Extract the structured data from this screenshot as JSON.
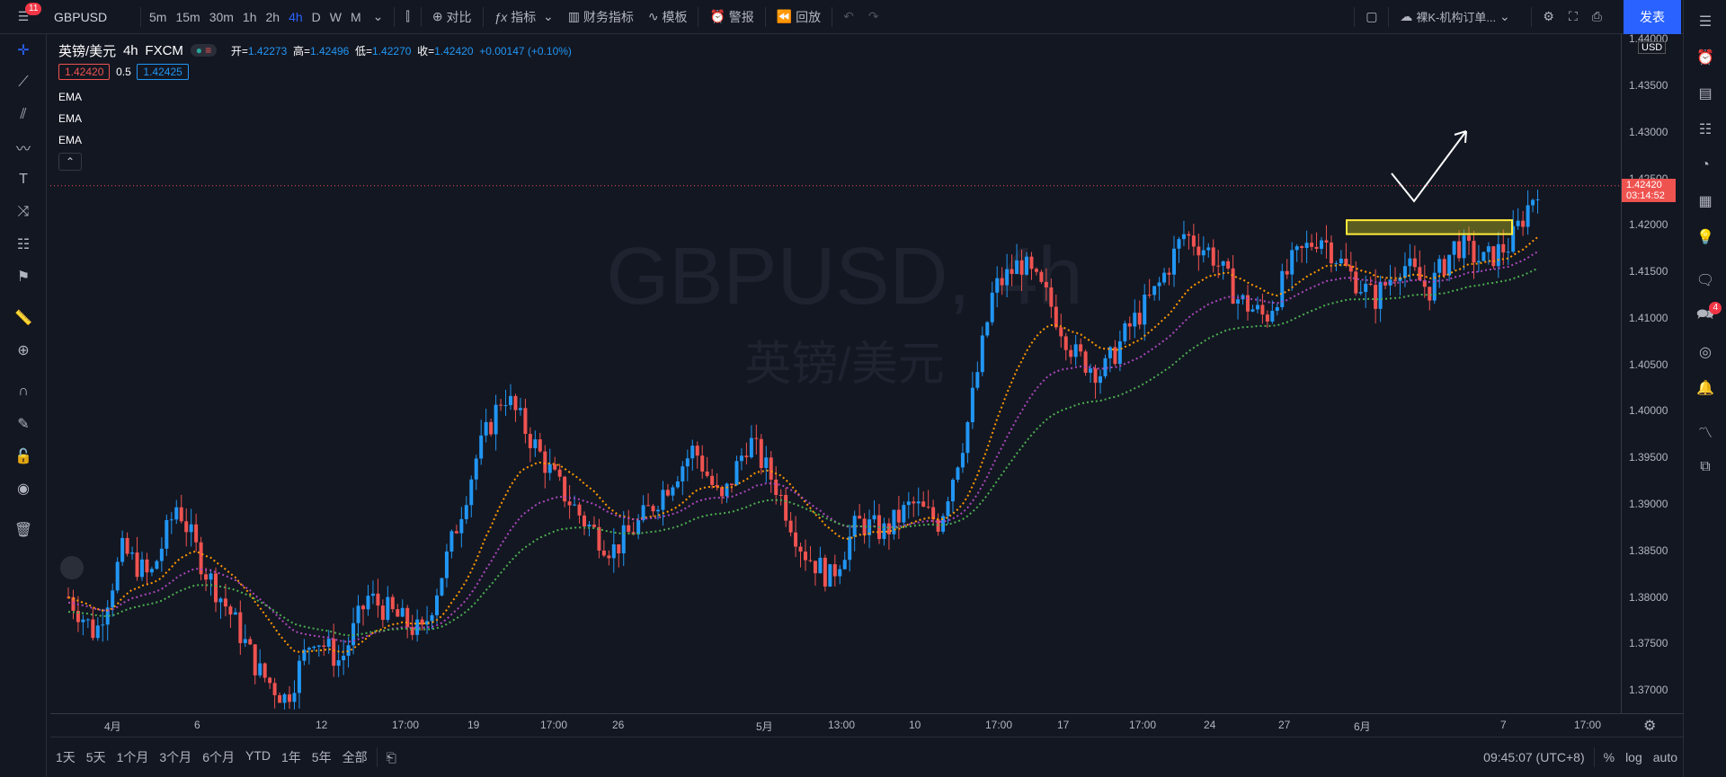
{
  "topbar": {
    "menu_badge": "11",
    "symbol": "GBPUSD",
    "intervals": [
      "5m",
      "15m",
      "30m",
      "1h",
      "2h",
      "4h",
      "D",
      "W",
      "M"
    ],
    "active_interval": "4h",
    "compare": "对比",
    "indicators": "指标",
    "financials": "财务指标",
    "templates": "模板",
    "alert": "警报",
    "replay": "回放",
    "layout_name": "裸K-机构订单...",
    "publish": "发表"
  },
  "legend": {
    "title": "英镑/美元",
    "interval": "4h",
    "exchange": "FXCM",
    "o_label": "开=",
    "o": "1.42273",
    "h_label": "高=",
    "h": "1.42496",
    "l_label": "低=",
    "l": "1.42270",
    "c_label": "收=",
    "c": "1.42420",
    "change": "+0.00147 (+0.10%)",
    "bid": "1.42420",
    "spread": "0.5",
    "ask": "1.42425",
    "indicators": [
      "EMA",
      "EMA",
      "EMA"
    ]
  },
  "watermark": {
    "symbol": "GBPUSD, 4h",
    "name": "英镑/美元"
  },
  "price_axis": {
    "currency": "USD",
    "ticks": [
      "1.44000",
      "1.43500",
      "1.43000",
      "1.42500",
      "1.42000",
      "1.41500",
      "1.41000",
      "1.40500",
      "1.40000",
      "1.39500",
      "1.39000",
      "1.38500",
      "1.38000",
      "1.37500",
      "1.37000"
    ],
    "last": "1.42420",
    "countdown": "03:14:52"
  },
  "time_axis": {
    "labels": [
      "4月",
      "6",
      "12",
      "17:00",
      "19",
      "17:00",
      "26",
      "5月",
      "13:00",
      "10",
      "17:00",
      "17",
      "17:00",
      "24",
      "27",
      "6月",
      "7",
      "17:00"
    ]
  },
  "bottombar": {
    "ranges": [
      "1天",
      "5天",
      "1个月",
      "3个月",
      "6个月",
      "YTD",
      "1年",
      "5年",
      "全部"
    ],
    "clock": "09:45:07 (UTC+8)",
    "pct": "%",
    "log": "log",
    "auto": "auto"
  },
  "rightbar": {
    "badge": "4"
  },
  "colors": {
    "bull": "#2196f3",
    "bear": "#ef5350",
    "ema1": "#ff9800",
    "ema2": "#ab47bc",
    "ema3": "#4caf50",
    "accent": "#2962ff"
  },
  "chart_data": {
    "type": "candlestick",
    "ylim": [
      1.3675,
      1.4405
    ],
    "seed": [
      1.38,
      1.376,
      1.385,
      1.382,
      1.39,
      1.383,
      1.378,
      1.372,
      1.369,
      1.376,
      1.373,
      1.38,
      1.378,
      1.376,
      1.385,
      1.395,
      1.402,
      1.397,
      1.392,
      1.388,
      1.385,
      1.388,
      1.392,
      1.396,
      1.39,
      1.397,
      1.392,
      1.385,
      1.382,
      1.388,
      1.387,
      1.39,
      1.388,
      1.398,
      1.413,
      1.416,
      1.412,
      1.406,
      1.404,
      1.409,
      1.413,
      1.419,
      1.417,
      1.412,
      1.41,
      1.416,
      1.419,
      1.415,
      1.412,
      1.416,
      1.413,
      1.418,
      1.416,
      1.418,
      1.4242
    ],
    "zone": [
      1.419,
      1.4205
    ]
  }
}
